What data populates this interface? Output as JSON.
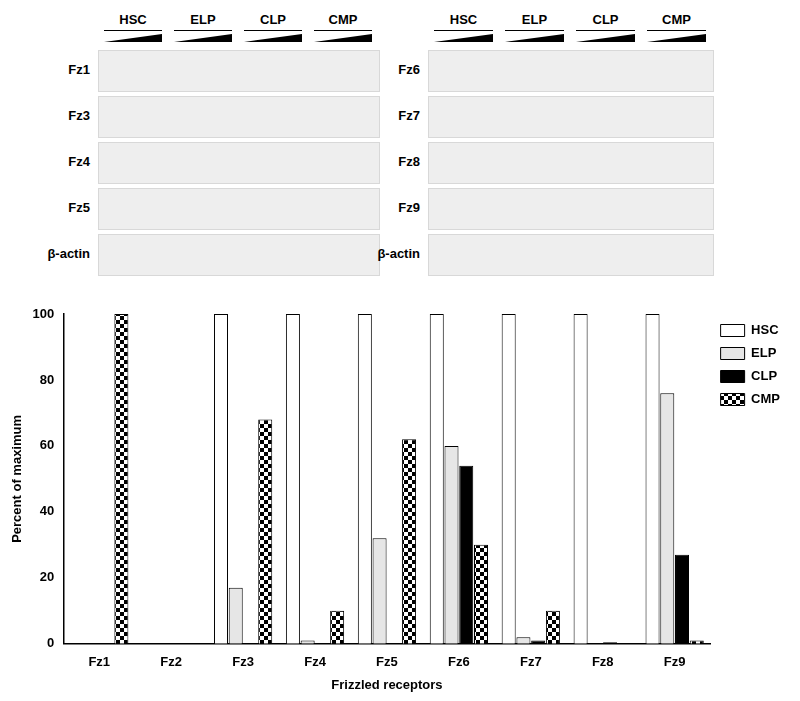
{
  "blots": {
    "left": {
      "groups": [
        "HSC",
        "ELP",
        "CLP",
        "CMP"
      ],
      "rows": [
        "Fz1",
        "Fz3",
        "Fz4",
        "Fz5",
        "β-actin"
      ]
    },
    "right": {
      "groups": [
        "HSC",
        "ELP",
        "CLP",
        "CMP"
      ],
      "rows": [
        "Fz6",
        "Fz7",
        "Fz8",
        "Fz9",
        "β-actin"
      ]
    }
  },
  "chart_data": {
    "type": "bar",
    "x_label": "Frizzled receptors",
    "y_label": "Percent of maximum",
    "categories": [
      "Fz1",
      "Fz2",
      "Fz3",
      "Fz4",
      "Fz5",
      "Fz6",
      "Fz7",
      "Fz8",
      "Fz9"
    ],
    "series": [
      {
        "name": "HSC",
        "color": "#ffffff",
        "values": [
          0,
          0,
          100,
          100,
          100,
          100,
          100,
          100,
          100
        ]
      },
      {
        "name": "ELP",
        "color": "#e6e6e6",
        "values": [
          0,
          0,
          17,
          1,
          32,
          60,
          2,
          0,
          76
        ]
      },
      {
        "name": "CLP",
        "color": "#000000",
        "values": [
          0,
          0,
          0,
          0,
          0,
          54,
          1,
          0.5,
          27
        ]
      },
      {
        "name": "CMP",
        "color": "#000000",
        "marker": "checker",
        "values": [
          100,
          0,
          68,
          10,
          62,
          30,
          10,
          0,
          1
        ]
      }
    ],
    "ylim": [
      0,
      100
    ],
    "yticks": [
      0,
      20,
      40,
      60,
      80,
      100
    ],
    "grid": false,
    "legend": "right"
  }
}
